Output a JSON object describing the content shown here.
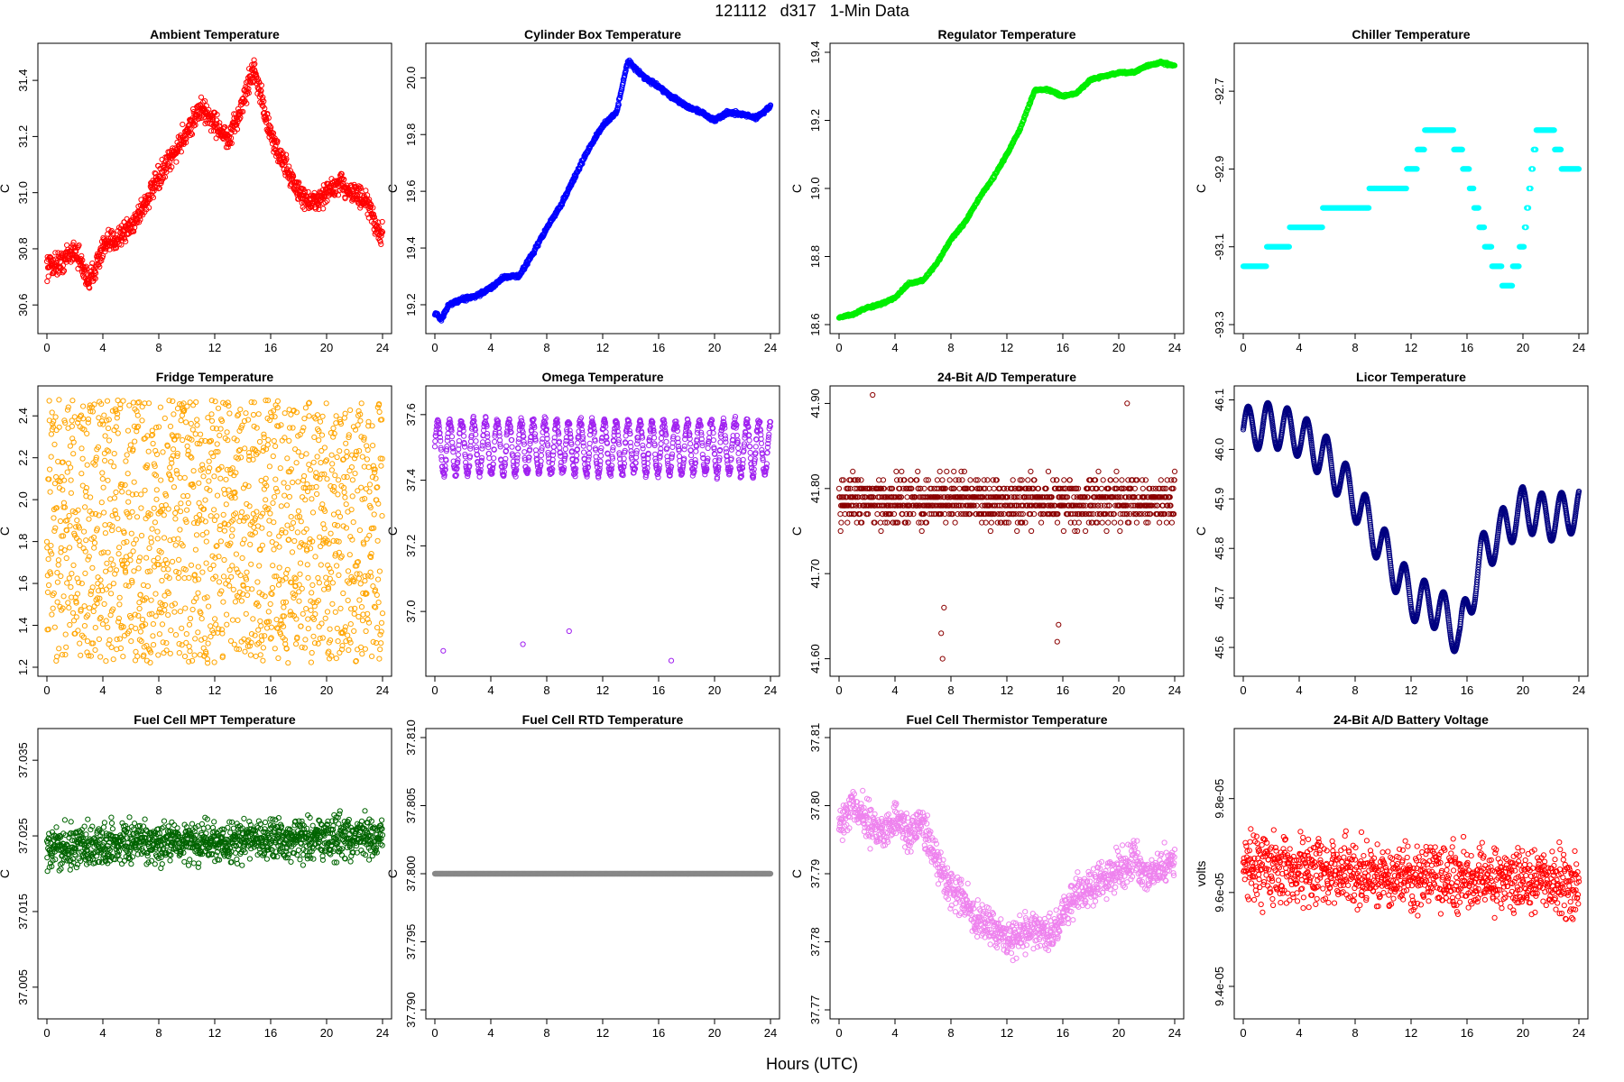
{
  "page": {
    "title": "121112   d317   1-Min Data",
    "xlabel": "Hours (UTC)"
  },
  "chart_data": [
    {
      "type": "scatter",
      "title": "Ambient Temperature",
      "ylabel": "C",
      "color": "#ff0000",
      "xlim": [
        0,
        24
      ],
      "ylim": [
        30.53,
        31.5
      ],
      "xticks": [
        0,
        4,
        8,
        12,
        16,
        20,
        24
      ],
      "yticks": [
        30.6,
        30.8,
        31.0,
        31.2,
        31.4
      ],
      "yticklabels": [
        "30.6",
        "30.8",
        "31.0",
        "31.2",
        "31.4"
      ],
      "x": [
        0,
        1,
        2,
        3,
        4,
        5,
        6,
        7,
        8,
        9,
        10,
        11,
        12,
        13,
        14,
        14.8,
        16,
        17,
        18,
        19,
        20,
        21,
        22,
        23,
        23.8
      ],
      "y": [
        30.74,
        30.75,
        30.8,
        30.68,
        30.8,
        30.84,
        30.88,
        30.96,
        31.05,
        31.13,
        31.22,
        31.3,
        31.25,
        31.18,
        31.32,
        31.45,
        31.2,
        31.1,
        31.0,
        30.96,
        31.0,
        31.03,
        31.0,
        30.95,
        30.85
      ],
      "jitter": 0.06,
      "points_per_hour": 45,
      "outliers": []
    },
    {
      "type": "scatter",
      "title": "Cylinder Box Temperature",
      "ylabel": "C",
      "color": "#0000ff",
      "xlim": [
        0,
        24
      ],
      "ylim": [
        19.13,
        20.09
      ],
      "xticks": [
        0,
        4,
        8,
        12,
        16,
        20,
        24
      ],
      "yticks": [
        19.2,
        19.4,
        19.6,
        19.8,
        20.0
      ],
      "yticklabels": [
        "19.2",
        "19.4",
        "19.6",
        "19.8",
        "20.0"
      ],
      "x": [
        0,
        0.5,
        1,
        2,
        3,
        4,
        5,
        6,
        7,
        8,
        9,
        10,
        11,
        12,
        13,
        13.8,
        15,
        16,
        17,
        18,
        19,
        20,
        21,
        22,
        23,
        24
      ],
      "y": [
        19.17,
        19.15,
        19.2,
        19.22,
        19.23,
        19.26,
        19.3,
        19.3,
        19.38,
        19.47,
        19.55,
        19.65,
        19.75,
        19.83,
        19.88,
        20.06,
        20.0,
        19.97,
        19.93,
        19.9,
        19.88,
        19.85,
        19.88,
        19.87,
        19.86,
        19.9
      ],
      "jitter": 0.01,
      "points_per_hour": 45,
      "outliers": []
    },
    {
      "type": "scatter",
      "title": "Regulator Temperature",
      "ylabel": "C",
      "color": "#00ee00",
      "xlim": [
        0,
        24
      ],
      "ylim": [
        18.6,
        19.4
      ],
      "xticks": [
        0,
        4,
        8,
        12,
        16,
        20,
        24
      ],
      "yticks": [
        18.6,
        18.8,
        19.0,
        19.2,
        19.4
      ],
      "yticklabels": [
        "18.6",
        "18.8",
        "19.0",
        "19.2",
        "19.4"
      ],
      "x": [
        0,
        1,
        2,
        3,
        4,
        5,
        6,
        7,
        8,
        9,
        10,
        11,
        12,
        13,
        14,
        15,
        16,
        17,
        18,
        19,
        20,
        21,
        22,
        23,
        24
      ],
      "y": [
        18.62,
        18.63,
        18.65,
        18.66,
        18.68,
        18.72,
        18.73,
        18.78,
        18.85,
        18.9,
        18.97,
        19.03,
        19.1,
        19.18,
        19.29,
        19.29,
        19.27,
        19.28,
        19.32,
        19.33,
        19.34,
        19.34,
        19.36,
        19.37,
        19.36
      ],
      "jitter": 0.005,
      "points_per_hour": 45,
      "outliers": []
    },
    {
      "type": "scatter",
      "title": "Chiller Temperature",
      "ylabel": "C",
      "color": "#00ffff",
      "xlim": [
        0,
        24
      ],
      "ylim": [
        -93.3,
        -92.6
      ],
      "xticks": [
        0,
        4,
        8,
        12,
        16,
        20,
        24
      ],
      "yticks": [
        -93.3,
        -93.1,
        -92.9,
        -92.7
      ],
      "yticklabels": [
        "-93.3",
        "-93.1",
        "-92.9",
        "-92.7"
      ],
      "x": [
        0,
        2,
        4,
        6,
        8,
        10,
        12,
        13,
        14,
        15,
        16,
        17,
        18,
        19,
        20,
        21,
        22,
        23,
        24
      ],
      "y": [
        -93.15,
        -93.12,
        -93.05,
        -93.02,
        -93.0,
        -92.95,
        -92.92,
        -92.82,
        -92.8,
        -92.82,
        -92.9,
        -93.05,
        -93.15,
        -93.2,
        -93.1,
        -92.8,
        -92.8,
        -92.9,
        -92.9
      ],
      "jitter": 0.0,
      "points_per_hour": 25,
      "quantum": 0.05,
      "outliers": []
    },
    {
      "type": "scatter",
      "title": "Fridge Temperature",
      "ylabel": "C",
      "color": "#ffa500",
      "xlim": [
        0,
        24
      ],
      "ylim": [
        1.2,
        2.5
      ],
      "xticks": [
        0,
        4,
        8,
        12,
        16,
        20,
        24
      ],
      "yticks": [
        1.2,
        1.4,
        1.6,
        1.8,
        2.0,
        2.2,
        2.4
      ],
      "yticklabels": [
        "1.2",
        "1.4",
        "1.6",
        "1.8",
        "2.0",
        "2.2",
        "2.4"
      ],
      "x": [
        0,
        24
      ],
      "y": [
        1.85,
        1.85
      ],
      "jitter": 0.0,
      "points_per_hour": 60,
      "sawtooth": [
        1.22,
        2.48
      ],
      "outliers": []
    },
    {
      "type": "scatter",
      "title": "Omega Temperature",
      "ylabel": "C",
      "color": "#a020f0",
      "xlim": [
        0,
        24
      ],
      "ylim": [
        36.83,
        37.66
      ],
      "xticks": [
        0,
        4,
        8,
        12,
        16,
        20,
        24
      ],
      "yticks": [
        37.0,
        37.2,
        37.4,
        37.6
      ],
      "yticklabels": [
        "37.0",
        "37.2",
        "37.4",
        "37.6"
      ],
      "x": [
        0,
        24
      ],
      "y": [
        37.5,
        37.5
      ],
      "jitter": 0.02,
      "points_per_hour": 45,
      "wave": [
        0.08,
        0.85
      ],
      "outliers": [
        [
          0.6,
          36.88
        ],
        [
          6.3,
          36.9
        ],
        [
          9.6,
          36.94
        ],
        [
          16.9,
          36.85
        ]
      ]
    },
    {
      "type": "scatter",
      "title": "24-Bit A/D Temperature",
      "ylabel": "C",
      "color": "#8b0000",
      "xlim": [
        0,
        24
      ],
      "ylim": [
        41.59,
        41.91
      ],
      "xticks": [
        0,
        4,
        8,
        12,
        16,
        20,
        24
      ],
      "yticks": [
        41.6,
        41.7,
        41.8,
        41.9
      ],
      "yticklabels": [
        "41.60",
        "41.70",
        "41.80",
        "41.90"
      ],
      "x": [
        0,
        24
      ],
      "y": [
        41.785,
        41.785
      ],
      "jitter": 0.04,
      "points_per_hour": 45,
      "quantum": 0.01,
      "outliers": [
        [
          7.4,
          41.6
        ],
        [
          7.3,
          41.63
        ],
        [
          7.5,
          41.66
        ],
        [
          15.6,
          41.62
        ],
        [
          15.7,
          41.64
        ],
        [
          2.4,
          41.91
        ],
        [
          20.6,
          41.9
        ]
      ]
    },
    {
      "type": "scatter",
      "title": "Licor Temperature",
      "ylabel": "C",
      "color": "#000080",
      "xlim": [
        0,
        24
      ],
      "ylim": [
        45.56,
        46.11
      ],
      "xticks": [
        0,
        4,
        8,
        12,
        16,
        20,
        24
      ],
      "yticks": [
        45.6,
        45.7,
        45.8,
        45.9,
        46.0,
        46.1
      ],
      "yticklabels": [
        "45.6",
        "45.7",
        "45.8",
        "45.9",
        "46.0",
        "46.1"
      ],
      "x": [
        0,
        2,
        4,
        6,
        8,
        10,
        12,
        14,
        15.5,
        17,
        18,
        20,
        22,
        24
      ],
      "y": [
        46.04,
        46.05,
        46.03,
        45.98,
        45.9,
        45.8,
        45.7,
        45.68,
        45.62,
        45.78,
        45.82,
        45.88,
        45.86,
        45.88
      ],
      "jitter": 0.0,
      "points_per_hour": 60,
      "wave": [
        0.045,
        1.4
      ],
      "outliers": []
    },
    {
      "type": "scatter",
      "title": "Fuel Cell MPT Temperature",
      "ylabel": "C",
      "color": "#006400",
      "xlim": [
        0,
        24
      ],
      "ylim": [
        37.002,
        37.038
      ],
      "xticks": [
        0,
        4,
        8,
        12,
        16,
        20,
        24
      ],
      "yticks": [
        37.005,
        37.015,
        37.025,
        37.035
      ],
      "yticklabels": [
        "37.005",
        "37.015",
        "37.025",
        "37.035"
      ],
      "x": [
        0,
        24
      ],
      "y": [
        37.0235,
        37.025
      ],
      "jitter": 0.004,
      "points_per_hour": 50,
      "outliers": []
    },
    {
      "type": "scatter",
      "title": "Fuel Cell RTD Temperature",
      "ylabel": "C",
      "color": "#888888",
      "xlim": [
        0,
        24
      ],
      "ylim": [
        37.79,
        37.81
      ],
      "xticks": [
        0,
        4,
        8,
        12,
        16,
        20,
        24
      ],
      "yticks": [
        37.79,
        37.795,
        37.8,
        37.805,
        37.81
      ],
      "yticklabels": [
        "37.790",
        "37.795",
        "37.800",
        "37.805",
        "37.810"
      ],
      "x": [
        0,
        24
      ],
      "y": [
        37.8,
        37.8
      ],
      "jitter": 0.0,
      "points_per_hour": 60,
      "outliers": []
    },
    {
      "type": "scatter",
      "title": "Fuel Cell Thermistor Temperature",
      "ylabel": "C",
      "color": "#ee82ee",
      "xlim": [
        0,
        24
      ],
      "ylim": [
        37.77,
        37.81
      ],
      "xticks": [
        0,
        4,
        8,
        12,
        16,
        20,
        24
      ],
      "yticks": [
        37.77,
        37.78,
        37.79,
        37.8,
        37.81
      ],
      "yticklabels": [
        "37.77",
        "37.78",
        "37.79",
        "37.80",
        "37.81"
      ],
      "x": [
        0,
        1,
        2,
        3,
        4,
        5,
        6,
        7,
        8,
        9,
        10,
        11,
        12,
        13,
        14,
        15,
        16,
        17,
        18,
        19,
        20,
        21,
        22,
        23,
        24
      ],
      "y": [
        37.797,
        37.8,
        37.798,
        37.796,
        37.798,
        37.796,
        37.797,
        37.792,
        37.788,
        37.786,
        37.783,
        37.782,
        37.78,
        37.781,
        37.782,
        37.781,
        37.784,
        37.787,
        37.788,
        37.789,
        37.791,
        37.792,
        37.79,
        37.791,
        37.792
      ],
      "jitter": 0.004,
      "points_per_hour": 45,
      "outliers": []
    },
    {
      "type": "scatter",
      "title": "24-Bit A/D Battery Voltage",
      "ylabel": "volts",
      "color": "#ff0000",
      "xlim": [
        0,
        24
      ],
      "ylim": [
        9.35e-05,
        9.93e-05
      ],
      "xticks": [
        0,
        4,
        8,
        12,
        16,
        20,
        24
      ],
      "yticks": [
        9.4e-05,
        9.6e-05,
        9.8e-05
      ],
      "yticklabels": [
        "9.4e-05",
        "9.6e-05",
        "9.8e-05"
      ],
      "x": [
        0,
        24
      ],
      "y": [
        9.65e-05,
        9.62e-05
      ],
      "jitter": 1e-06,
      "points_per_hour": 45,
      "outliers": []
    }
  ]
}
